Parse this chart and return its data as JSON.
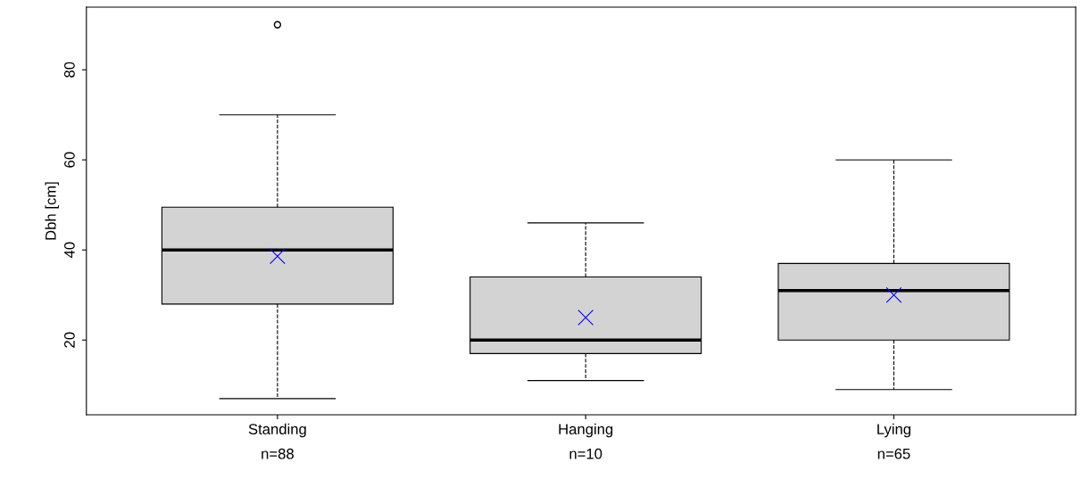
{
  "chart_data": {
    "type": "box",
    "ylabel": "Dbh [cm]",
    "categories": [
      "Standing\nn=88",
      "Hanging\nn=10",
      "Lying\nn=65"
    ],
    "boxes": [
      {
        "low": 7,
        "q1": 28,
        "median": 40,
        "q3": 49.5,
        "high": 70,
        "mean": 38.6,
        "outliers": [
          90
        ]
      },
      {
        "low": 11,
        "q1": 17,
        "median": 20,
        "q3": 34,
        "high": 46,
        "mean": 25
      },
      {
        "low": 9,
        "q1": 20,
        "median": 31,
        "q3": 37,
        "high": 60,
        "mean": 30
      }
    ],
    "color": "#d3d3d3",
    "ylim": [
      3.4,
      93.9
    ],
    "yticks": [
      20,
      40,
      60,
      80
    ],
    "grid": false
  }
}
